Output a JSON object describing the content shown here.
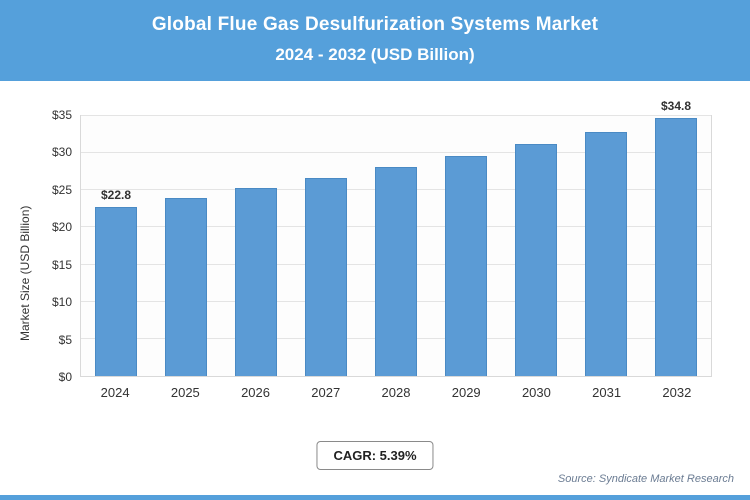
{
  "header": {
    "title_line1": "Global Flue Gas Desulfurization Systems Market",
    "title_line2": "2024 - 2032 (USD Billion)"
  },
  "chart_data": {
    "type": "bar",
    "title": "Global Flue Gas Desulfurization Systems Market 2024 - 2032 (USD Billion)",
    "categories": [
      "2024",
      "2025",
      "2026",
      "2027",
      "2028",
      "2029",
      "2030",
      "2031",
      "2032"
    ],
    "values": [
      22.8,
      24.0,
      25.3,
      26.7,
      28.1,
      29.6,
      31.2,
      32.9,
      34.8
    ],
    "data_labels": [
      "$22.8",
      "",
      "",
      "",
      "",
      "",
      "",
      "",
      "$34.8"
    ],
    "xlabel": "",
    "ylabel": "Market Size (USD Billion)",
    "ylim": [
      0,
      35
    ],
    "ytick_step": 5,
    "ytick_labels": [
      "$0",
      "$5",
      "$10",
      "$15",
      "$20",
      "$25",
      "$30",
      "$35"
    ],
    "grid": true,
    "legend": false,
    "bar_color": "#5b9bd5"
  },
  "footer": {
    "cagr_label": "CAGR: 5.39%",
    "source": "Source: Syndicate Market Research"
  }
}
